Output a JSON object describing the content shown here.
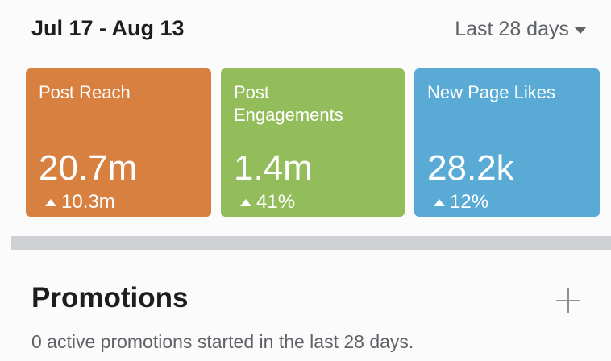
{
  "header": {
    "date_range": "Jul 17 - Aug 13",
    "period_selector": "Last 28 days"
  },
  "cards": [
    {
      "label": "Post Reach",
      "value": "20.7m",
      "change": "10.3m",
      "color": "#d88040"
    },
    {
      "label": "Post Engagements",
      "value": "1.4m",
      "change": "41%",
      "color": "#93bd5b"
    },
    {
      "label": "New Page Likes",
      "value": "28.2k",
      "change": "12%",
      "color": "#5aaad6"
    }
  ],
  "promotions": {
    "title": "Promotions",
    "subtitle": "0 active promotions started in the last 28 days."
  }
}
